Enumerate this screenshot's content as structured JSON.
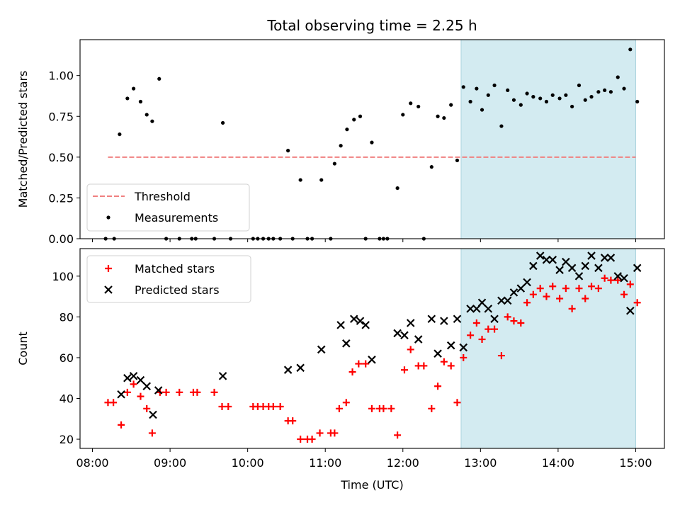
{
  "chart_data": {
    "type": "scatter",
    "title": "Total observing time = 2.25 h",
    "xlabel": "Time (UTC)",
    "x_ticks": [
      "08:00",
      "09:00",
      "10:00",
      "11:00",
      "12:00",
      "13:00",
      "14:00",
      "15:00"
    ],
    "x_range_hours": [
      7.84,
      15.37
    ],
    "highlight_span_hours": [
      12.75,
      15.0
    ],
    "highlight_color": "#d3ebf1",
    "panels": [
      {
        "ylabel": "Matched/Predicted stars",
        "ylim": [
          0.0,
          1.22
        ],
        "y_ticks": [
          "0.00",
          "0.25",
          "0.50",
          "0.75",
          "1.00"
        ],
        "y_tick_values": [
          0.0,
          0.25,
          0.5,
          0.75,
          1.0
        ],
        "legend_position": "lower-left",
        "threshold": {
          "name": "Threshold",
          "value": 0.5,
          "x_range": [
            8.2,
            15.0
          ],
          "color": "#f08080"
        },
        "series": [
          {
            "name": "Measurements",
            "color": "#000000",
            "marker": "dot",
            "x": [
              8.17,
              8.28,
              8.35,
              8.45,
              8.53,
              8.62,
              8.7,
              8.77,
              8.86,
              8.95,
              9.12,
              9.28,
              9.33,
              9.57,
              9.68,
              9.78,
              10.07,
              10.13,
              10.2,
              10.27,
              10.33,
              10.42,
              10.52,
              10.58,
              10.68,
              10.77,
              10.83,
              10.95,
              11.07,
              11.12,
              11.2,
              11.28,
              11.37,
              11.45,
              11.52,
              11.6,
              11.7,
              11.75,
              11.8,
              11.93,
              12.0,
              12.1,
              12.2,
              12.27,
              12.37,
              12.45,
              12.53,
              12.62,
              12.7,
              12.78,
              12.87,
              12.95,
              13.02,
              13.1,
              13.18,
              13.27,
              13.35,
              13.43,
              13.52,
              13.6,
              13.68,
              13.77,
              13.85,
              13.93,
              14.02,
              14.1,
              14.18,
              14.27,
              14.35,
              14.43,
              14.52,
              14.6,
              14.68,
              14.77,
              14.85,
              14.93,
              15.02
            ],
            "y": [
              0.0,
              0.0,
              0.64,
              0.86,
              0.92,
              0.84,
              0.76,
              0.72,
              0.98,
              0.0,
              0.0,
              0.0,
              0.0,
              0.0,
              0.71,
              0.0,
              0.0,
              0.0,
              0.0,
              0.0,
              0.0,
              0.0,
              0.54,
              0.0,
              0.36,
              0.0,
              0.0,
              0.36,
              0.0,
              0.46,
              0.57,
              0.67,
              0.73,
              0.75,
              0.0,
              0.59,
              0.0,
              0.0,
              0.0,
              0.31,
              0.76,
              0.83,
              0.81,
              0.0,
              0.44,
              0.75,
              0.74,
              0.82,
              0.48,
              0.93,
              0.84,
              0.92,
              0.79,
              0.88,
              0.94,
              0.69,
              0.91,
              0.85,
              0.82,
              0.89,
              0.87,
              0.86,
              0.84,
              0.88,
              0.86,
              0.88,
              0.81,
              0.94,
              0.85,
              0.87,
              0.9,
              0.91,
              0.9,
              0.99,
              0.92,
              1.16,
              0.84
            ]
          }
        ]
      },
      {
        "ylabel": "Count",
        "ylim": [
          15.5,
          113.5
        ],
        "y_ticks": [
          "20",
          "40",
          "60",
          "80",
          "100"
        ],
        "y_tick_values": [
          20,
          40,
          60,
          80,
          100
        ],
        "legend_position": "upper-left",
        "series": [
          {
            "name": "Matched stars",
            "color": "#ff0000",
            "marker": "plus",
            "x": [
              8.2,
              8.27,
              8.37,
              8.45,
              8.53,
              8.62,
              8.7,
              8.77,
              8.87,
              8.95,
              9.12,
              9.3,
              9.35,
              9.57,
              9.67,
              9.75,
              10.07,
              10.13,
              10.2,
              10.27,
              10.33,
              10.42,
              10.52,
              10.58,
              10.68,
              10.77,
              10.83,
              10.93,
              11.07,
              11.12,
              11.18,
              11.27,
              11.35,
              11.43,
              11.52,
              11.6,
              11.7,
              11.75,
              11.85,
              11.93,
              12.02,
              12.1,
              12.2,
              12.27,
              12.37,
              12.45,
              12.53,
              12.62,
              12.7,
              12.78,
              12.87,
              12.95,
              13.02,
              13.1,
              13.18,
              13.27,
              13.35,
              13.43,
              13.52,
              13.6,
              13.68,
              13.77,
              13.85,
              13.93,
              14.02,
              14.1,
              14.18,
              14.27,
              14.35,
              14.43,
              14.52,
              14.6,
              14.68,
              14.77,
              14.85,
              14.93,
              15.02
            ],
            "y": [
              38,
              38,
              27,
              43,
              47,
              41,
              35,
              23,
              43,
              43,
              43,
              43,
              43,
              43,
              36,
              36,
              36,
              36,
              36,
              36,
              36,
              36,
              29,
              29,
              20,
              20,
              20,
              23,
              23,
              23,
              35,
              38,
              53,
              57,
              57,
              35,
              35,
              35,
              35,
              22,
              54,
              64,
              56,
              56,
              35,
              46,
              58,
              56,
              38,
              60,
              71,
              77,
              69,
              74,
              74,
              61,
              80,
              78,
              77,
              87,
              91,
              94,
              90,
              95,
              89,
              94,
              84,
              94,
              89,
              95,
              94,
              99,
              98,
              98,
              91,
              96,
              87
            ]
          },
          {
            "name": "Predicted stars",
            "color": "#000000",
            "marker": "cross",
            "x": [
              8.37,
              8.45,
              8.53,
              8.62,
              8.7,
              8.78,
              8.85,
              9.68,
              10.52,
              10.68,
              10.95,
              11.2,
              11.27,
              11.37,
              11.45,
              11.52,
              11.6,
              11.93,
              12.02,
              12.1,
              12.2,
              12.37,
              12.45,
              12.53,
              12.62,
              12.7,
              12.78,
              12.87,
              12.95,
              13.02,
              13.1,
              13.18,
              13.27,
              13.35,
              13.43,
              13.52,
              13.6,
              13.68,
              13.77,
              13.85,
              13.93,
              14.02,
              14.1,
              14.18,
              14.27,
              14.35,
              14.43,
              14.52,
              14.6,
              14.68,
              14.77,
              14.85,
              14.93,
              15.02
            ],
            "y": [
              42,
              50,
              51,
              49,
              46,
              32,
              44,
              51,
              54,
              55,
              64,
              76,
              67,
              79,
              78,
              76,
              59,
              72,
              71,
              77,
              69,
              79,
              62,
              78,
              66,
              79,
              65,
              84,
              84,
              87,
              84,
              79,
              88,
              88,
              92,
              94,
              97,
              105,
              110,
              108,
              108,
              103,
              107,
              104,
              100,
              105,
              110,
              104,
              109,
              109,
              100,
              99,
              83,
              104
            ]
          }
        ]
      }
    ]
  }
}
